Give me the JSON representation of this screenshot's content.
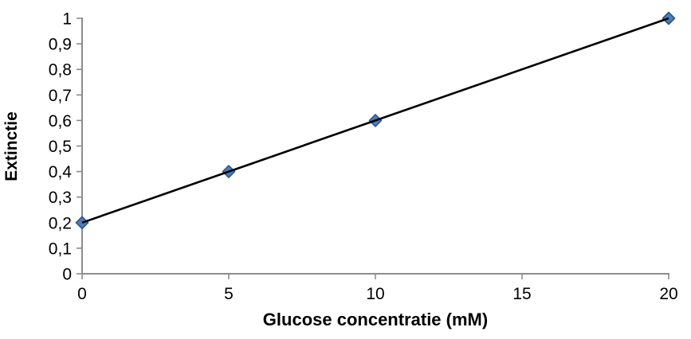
{
  "chart_data": {
    "type": "line",
    "title": "",
    "xlabel": "Glucose concentratie (mM)",
    "ylabel": "Extinctie",
    "x": [
      0,
      5,
      10,
      20
    ],
    "y": [
      0.2,
      0.4,
      0.6,
      1
    ],
    "series": [
      {
        "name": "Extinctie",
        "x": [
          0,
          5,
          10,
          20
        ],
        "y": [
          0.2,
          0.4,
          0.6,
          1
        ]
      }
    ],
    "xlim": [
      0,
      20
    ],
    "ylim": [
      0,
      1
    ],
    "x_tick_values": [
      0,
      5,
      10,
      15,
      20
    ],
    "x_tick_labels": [
      "0",
      "5",
      "10",
      "15",
      "20"
    ],
    "y_tick_values": [
      0,
      0.1,
      0.2,
      0.3,
      0.4,
      0.5,
      0.6,
      0.7,
      0.8,
      0.9,
      1
    ],
    "y_tick_labels": [
      "0",
      "0,1",
      "0,2",
      "0,3",
      "0,4",
      "0,5",
      "0,6",
      "0,7",
      "0,8",
      "0,9",
      "1"
    ],
    "decimal_separator": ",",
    "grid": false,
    "legend_position": "none",
    "marker_shape": "diamond",
    "colors": {
      "marker_fill": "#4a7ebb",
      "marker_border": "#30558c",
      "trendline": "#000000",
      "axis": "#8c8c8c",
      "text": "#000000",
      "background": "#ffffff"
    }
  }
}
